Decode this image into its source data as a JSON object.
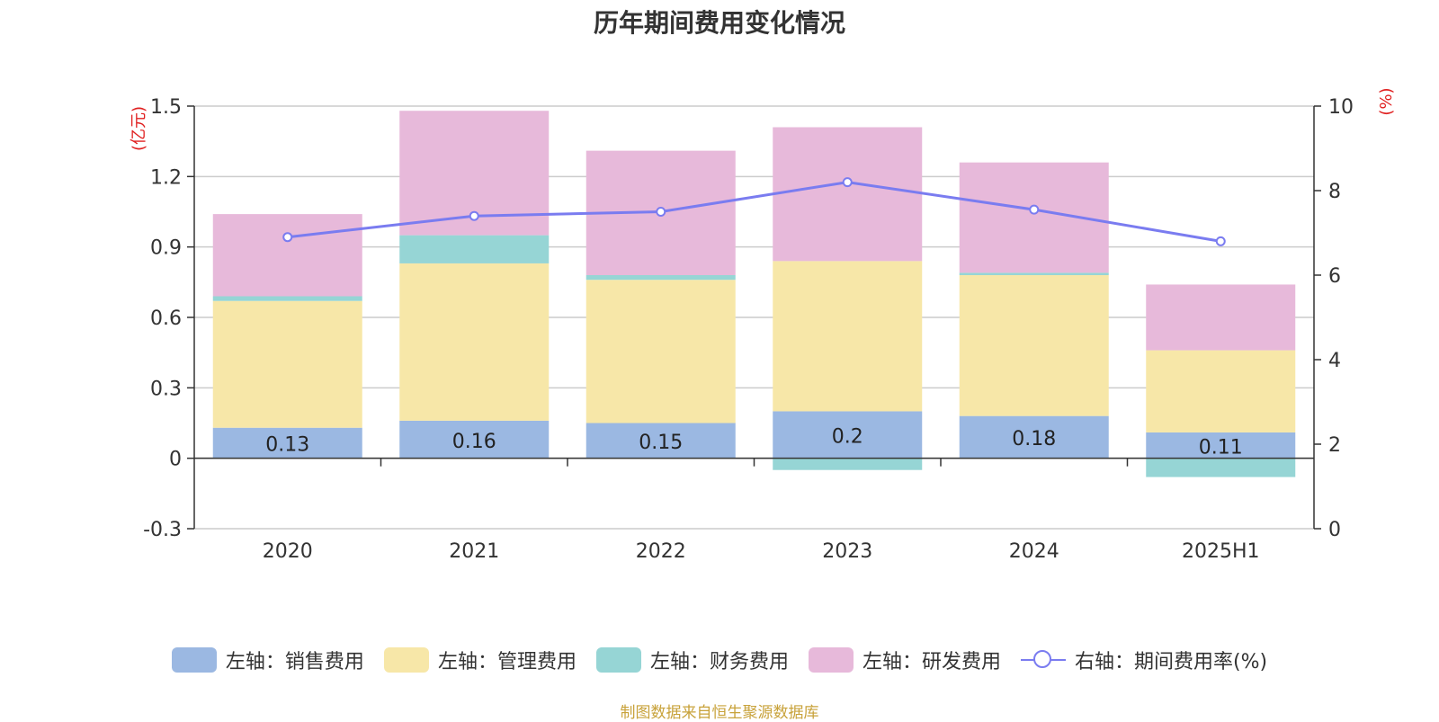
{
  "title": "历年期间费用变化情况",
  "source": "制图数据来自恒生聚源数据库",
  "chart_data": {
    "type": "bar",
    "stacked": true,
    "categories": [
      "2020",
      "2021",
      "2022",
      "2023",
      "2024",
      "2025H1"
    ],
    "y_left": {
      "unit_label": "(亿元)",
      "range": [
        -0.3,
        1.5
      ],
      "ticks": [
        "-0.3",
        "0",
        "0.3",
        "0.6",
        "0.9",
        "1.2",
        "1.5"
      ]
    },
    "y_right": {
      "unit_label": "(%)",
      "range": [
        0,
        10
      ],
      "ticks": [
        "0",
        "2",
        "4",
        "6",
        "8",
        "10"
      ]
    },
    "grid": true,
    "legend_position": "bottom",
    "series": [
      {
        "name": "左轴：销售费用",
        "axis": "left",
        "color": "#9bb8e2",
        "values": [
          0.13,
          0.16,
          0.15,
          0.2,
          0.18,
          0.11
        ],
        "labels": [
          "0.13",
          "0.16",
          "0.15",
          "0.2",
          "0.18",
          "0.11"
        ]
      },
      {
        "name": "左轴：管理费用",
        "axis": "left",
        "color": "#f7e7a8",
        "values": [
          0.54,
          0.67,
          0.61,
          0.64,
          0.6,
          0.35
        ]
      },
      {
        "name": "左轴：财务费用",
        "axis": "left",
        "color": "#96d5d5",
        "values": [
          0.02,
          0.12,
          0.02,
          -0.05,
          0.01,
          -0.08
        ]
      },
      {
        "name": "左轴：研发费用",
        "axis": "left",
        "color": "#e7b9da",
        "values": [
          0.35,
          0.53,
          0.53,
          0.57,
          0.47,
          0.28
        ]
      },
      {
        "name": "右轴：期间费用率(%)",
        "axis": "right",
        "type": "line",
        "color": "#7a7cf0",
        "values": [
          6.9,
          7.4,
          7.5,
          8.2,
          7.55,
          6.8
        ]
      }
    ]
  }
}
